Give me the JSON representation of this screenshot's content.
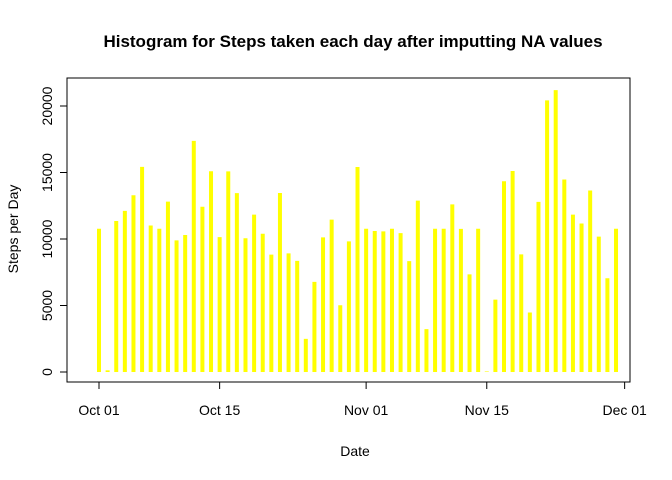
{
  "chart_data": {
    "type": "bar",
    "title": "Histogram for Steps taken each day after imputting NA values",
    "xlabel": "Date",
    "ylabel": "Steps per Day",
    "x_start": "2012-10-01",
    "x_ticks": [
      "Oct 01",
      "Oct 15",
      "Nov 01",
      "Nov 15",
      "Dec 01"
    ],
    "y_ticks": [
      0,
      5000,
      10000,
      15000,
      20000
    ],
    "ylim": [
      0,
      21500
    ],
    "grid": false,
    "colors": {
      "bars": "#ffff00",
      "axis": "#000000"
    },
    "values": [
      10766,
      126,
      11352,
      12116,
      13294,
      15420,
      11015,
      10766,
      12811,
      9900,
      10304,
      17382,
      12426,
      15098,
      10139,
      15084,
      13452,
      10056,
      11829,
      10395,
      8821,
      13460,
      8918,
      8355,
      2492,
      6778,
      10119,
      11458,
      5018,
      9819,
      15414,
      10766,
      10600,
      10571,
      10766,
      10439,
      8334,
      12883,
      3219,
      10766,
      10766,
      12608,
      10765,
      7336,
      10766,
      41,
      5441,
      14339,
      15110,
      8841,
      4472,
      12787,
      20427,
      21194,
      14478,
      11834,
      11162,
      13646,
      10183,
      7047,
      10766
    ]
  }
}
